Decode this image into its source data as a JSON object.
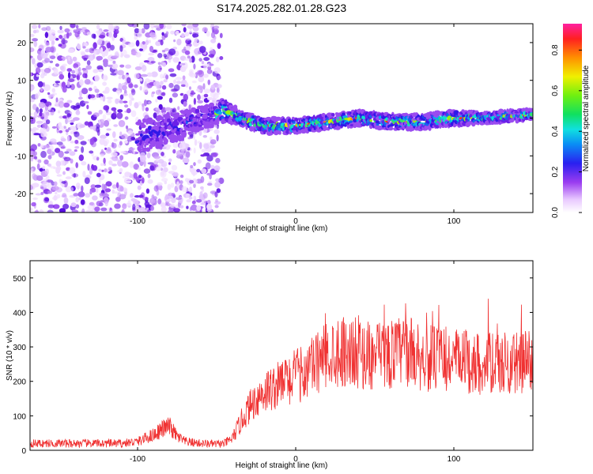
{
  "page_title": "S174.2025.282.01.28.G23",
  "colorbar": {
    "label": "Normalized spectral amplitude",
    "ticks": [
      "0.0",
      "0.2",
      "0.4",
      "0.6",
      "0.8"
    ],
    "tick_values": [
      0.0,
      0.2,
      0.4,
      0.6,
      0.8
    ],
    "range": [
      0.0,
      0.93
    ]
  },
  "chart_data": [
    {
      "type": "heatmap",
      "title": "S174.2025.282.01.28.G23",
      "xlabel": "Height of straight line (km)",
      "ylabel": "Frequency (Hz)",
      "xlim": [
        -168,
        150
      ],
      "ylim": [
        -25,
        25
      ],
      "x_ticks": [
        -100,
        0,
        100
      ],
      "y_ticks": [
        -20,
        -10,
        0,
        10,
        20
      ],
      "x_tick_labels": [
        "-100",
        "0",
        "100"
      ],
      "y_tick_labels": [
        "-20",
        "-10",
        "0",
        "10",
        "20"
      ],
      "noise_region_x": [
        -168,
        -47
      ],
      "signal_band": {
        "x": [
          -100,
          -80,
          -60,
          -45,
          -35,
          -20,
          0,
          20,
          40,
          60,
          80,
          100,
          120,
          150
        ],
        "center_hz": [
          -5,
          -3,
          0,
          2,
          0,
          -2,
          -2,
          -1,
          0,
          -1,
          -1,
          0,
          0,
          1
        ],
        "half_width_hz": [
          4,
          4,
          3,
          3,
          2,
          2,
          2,
          2,
          2,
          2,
          2,
          2,
          1.5,
          1.5
        ]
      }
    },
    {
      "type": "line",
      "xlabel": "Height of straight line (km)",
      "ylabel": "SNR (10 * v/v)",
      "xlim": [
        -168,
        150
      ],
      "ylim": [
        0,
        550
      ],
      "x_ticks": [
        -100,
        0,
        100
      ],
      "y_ticks": [
        0,
        100,
        200,
        300,
        400,
        500
      ],
      "x_tick_labels": [
        "-100",
        "0",
        "100"
      ],
      "y_tick_labels": [
        "0",
        "100",
        "200",
        "300",
        "400",
        "500"
      ],
      "series": [
        {
          "name": "SNR",
          "color": "#f03232",
          "x": [
            -168,
            -150,
            -130,
            -110,
            -100,
            -90,
            -85,
            -80,
            -75,
            -70,
            -60,
            -50,
            -45,
            -40,
            -35,
            -30,
            -25,
            -20,
            -15,
            -10,
            -5,
            0,
            5,
            10,
            15,
            20,
            25,
            30,
            40,
            50,
            60,
            70,
            80,
            90,
            100,
            110,
            120,
            130,
            140,
            150
          ],
          "values": [
            20,
            20,
            20,
            20,
            25,
            45,
            60,
            70,
            40,
            25,
            20,
            18,
            20,
            35,
            80,
            120,
            150,
            170,
            180,
            190,
            205,
            215,
            225,
            240,
            260,
            280,
            290,
            290,
            280,
            270,
            280,
            290,
            270,
            265,
            260,
            255,
            250,
            250,
            255,
            260
          ]
        }
      ]
    }
  ]
}
